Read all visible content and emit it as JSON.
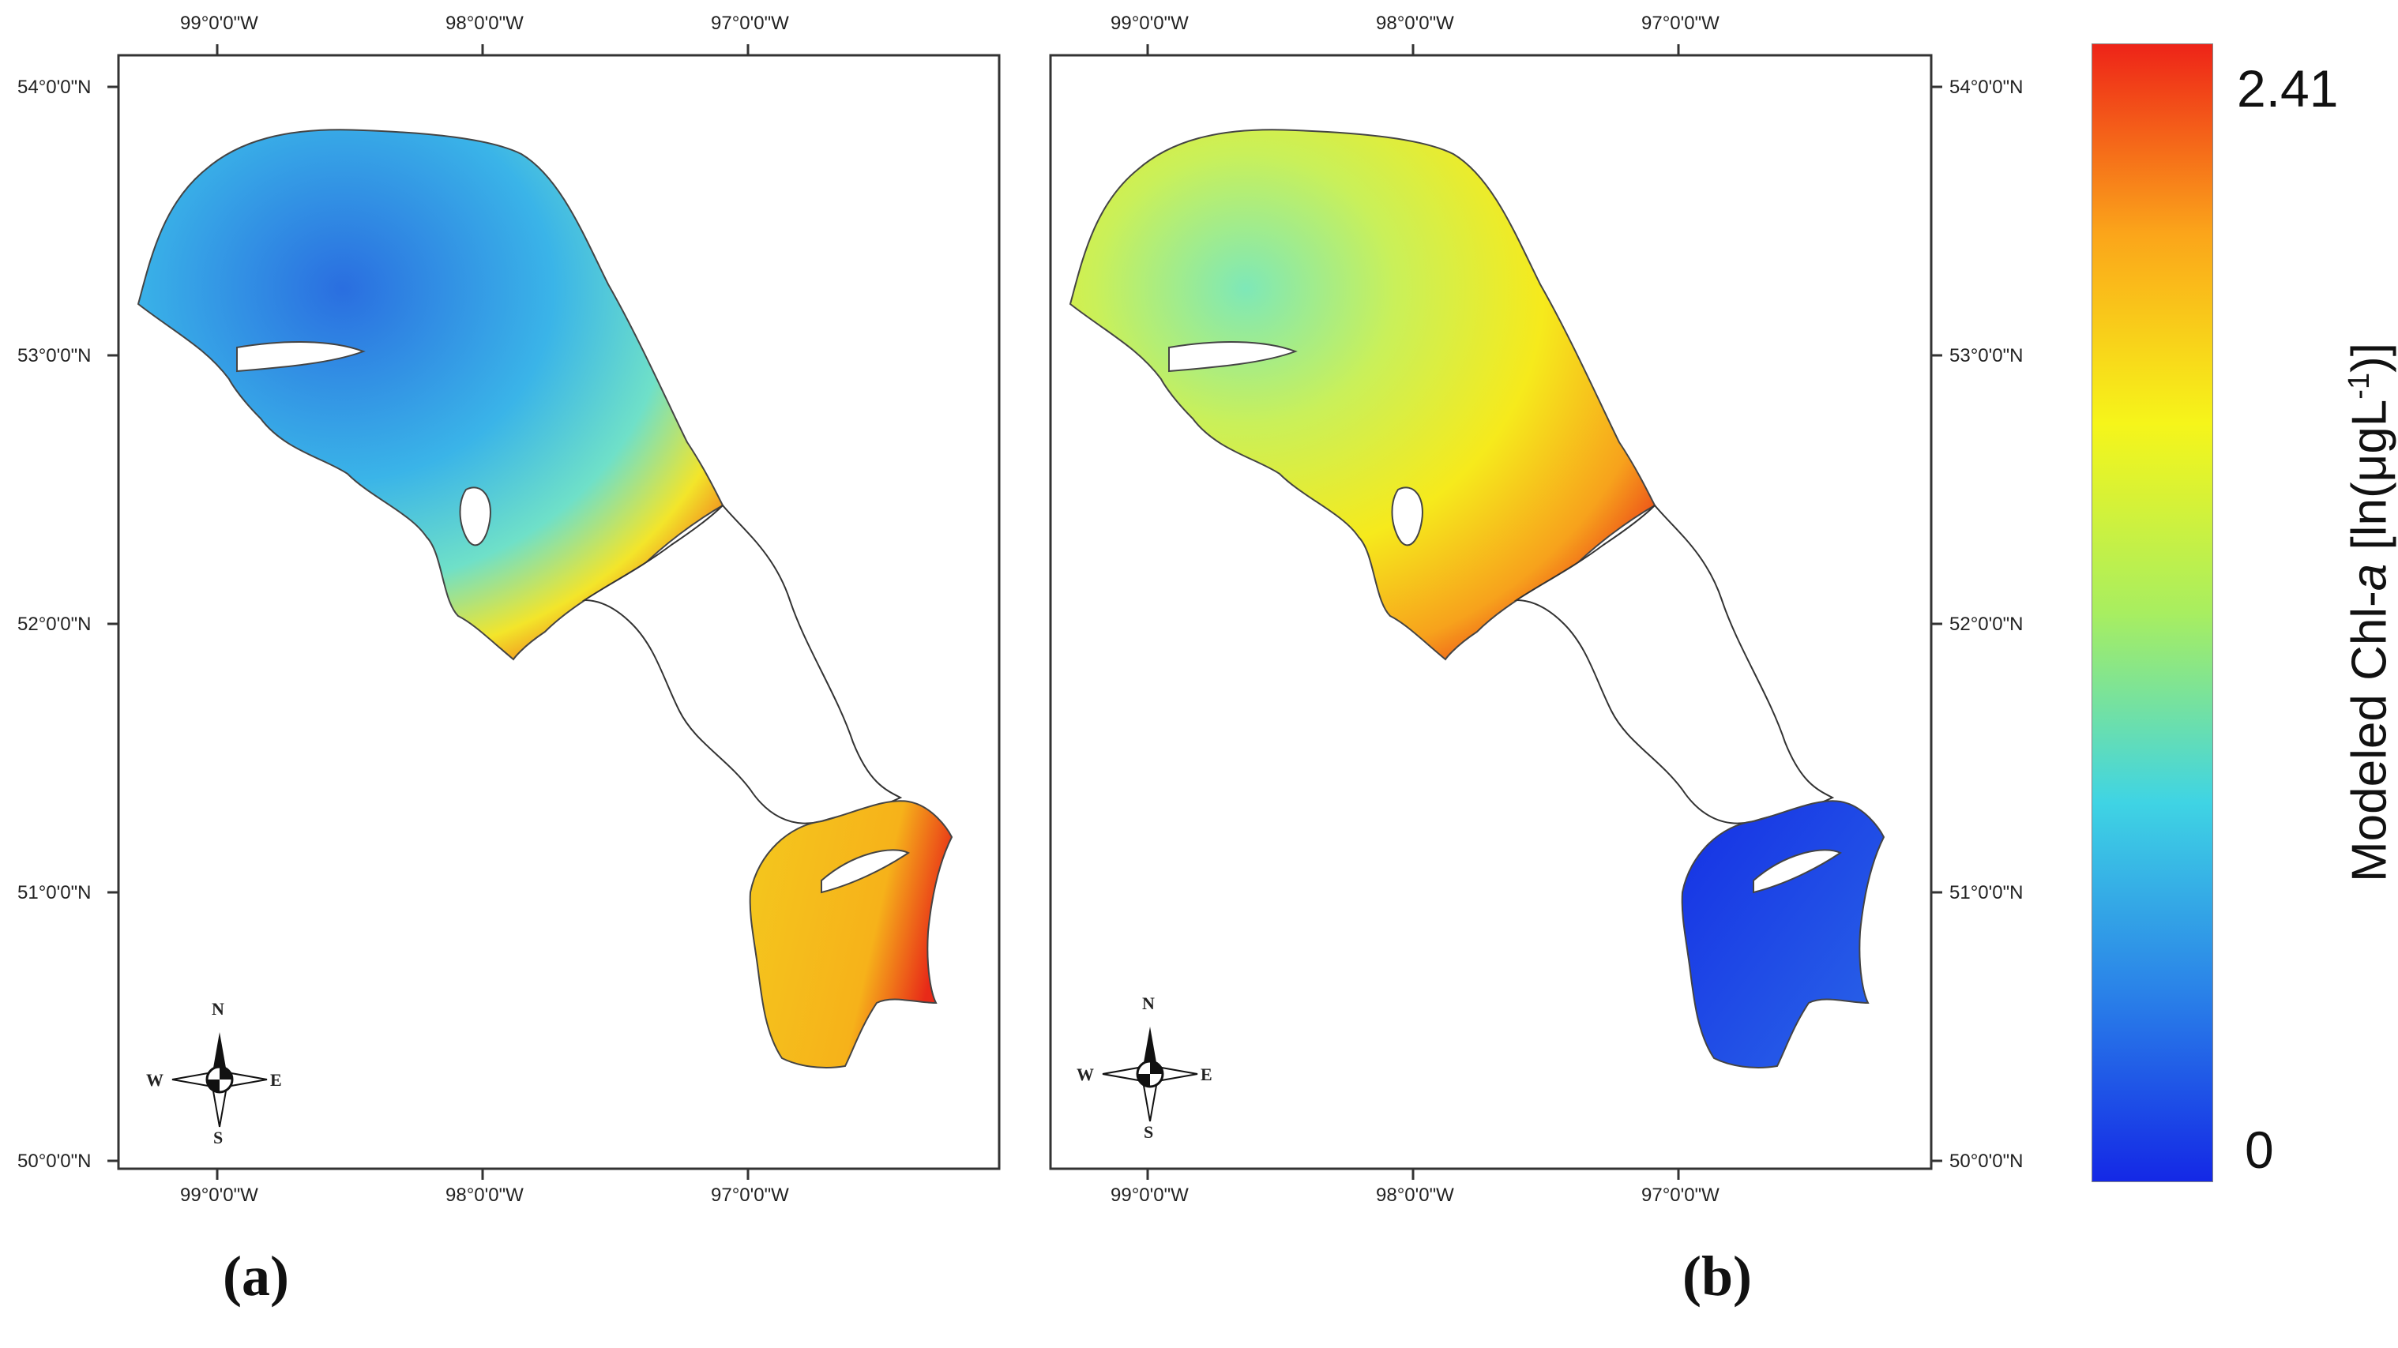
{
  "panels": [
    {
      "label": "(a)",
      "lon_labels": [
        "99°0'0\"W",
        "98°0'0\"W",
        "97°0'0\"W"
      ],
      "lat_labels": [
        "54°0'0\"N",
        "53°0'0\"N",
        "52°0'0\"N",
        "51°0'0\"N",
        "50°0'0\"N"
      ],
      "north_basin_level": 0.28,
      "south_basin_level": 0.86,
      "compass": {
        "n": "N",
        "s": "S",
        "e": "E",
        "w": "W"
      }
    },
    {
      "label": "(b)",
      "lon_labels": [
        "99°0'0\"W",
        "98°0'0\"W",
        "97°0'0\"W"
      ],
      "lat_labels": [
        "54°0'0\"N",
        "53°0'0\"N",
        "52°0'0\"N",
        "51°0'0\"N",
        "50°0'0\"N"
      ],
      "north_basin_level": 0.72,
      "south_basin_level": 0.04,
      "compass": {
        "n": "N",
        "s": "S",
        "e": "E",
        "w": "W"
      }
    }
  ],
  "colorbar": {
    "title_prefix": "Modeled Chl-",
    "title_italic": "a",
    "title_suffix_1": " [ln(μgL",
    "title_sup": "-1",
    "title_suffix_2": ")]",
    "max_label": "2.41",
    "min_label": "0",
    "colors": [
      "#1428e6",
      "#2a82e8",
      "#3fd4e4",
      "#a8ee60",
      "#f6f51a",
      "#fba51a",
      "#ee2418"
    ]
  }
}
